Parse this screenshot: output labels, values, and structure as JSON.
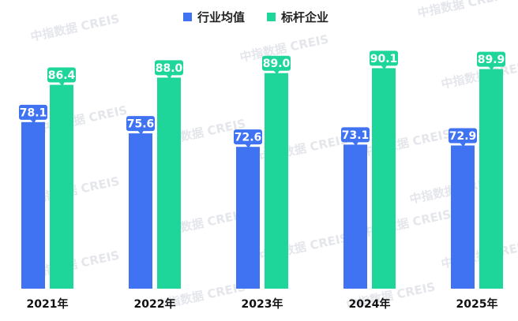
{
  "watermark": "中指数据 CREIS",
  "chart_data": {
    "type": "bar",
    "categories": [
      "2021年",
      "2022年",
      "2023年",
      "2024年",
      "2025年"
    ],
    "series": [
      {
        "name": "行业均值",
        "color": "#3f73f2",
        "values": [
          78.1,
          75.6,
          72.6,
          73.1,
          72.9
        ]
      },
      {
        "name": "标杆企业",
        "color": "#1fd69a",
        "values": [
          86.4,
          88.0,
          89.0,
          90.1,
          89.9
        ]
      }
    ],
    "legend_position": "top-center",
    "grid": false,
    "data_labels": true
  }
}
